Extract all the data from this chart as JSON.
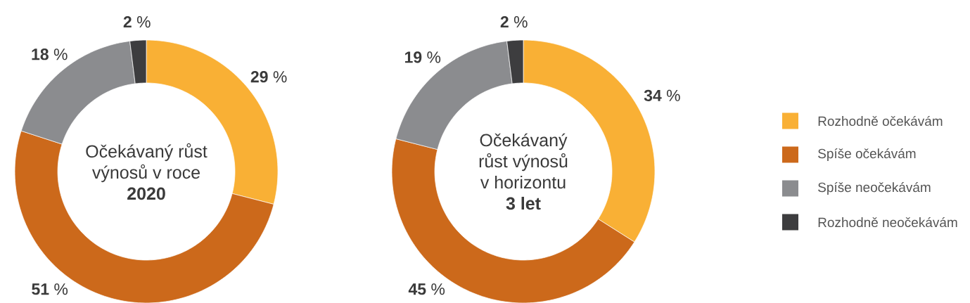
{
  "chart_data": [
    {
      "type": "donut",
      "title": "Očekávaný růst výnosů v roce **2020**",
      "categories": [
        null,
        null,
        null,
        null
      ],
      "values": [
        29,
        51,
        18,
        2
      ],
      "colors": [
        "#f9b035",
        "#cc691b",
        "#8b8c8f",
        "#3d3d3f"
      ],
      "value_labels": [
        "**29** %",
        "**51** %",
        "**18** %",
        "**2** %"
      ]
    },
    {
      "type": "donut",
      "title": "Očekávaný růst výnosů v horizontu **3 let**",
      "categories": [
        "Rozhodně očekávám",
        "Spíše očekávám",
        "Spíše neočekávám",
        "Rozhodně neočekávám"
      ],
      "values": [
        34,
        45,
        19,
        2
      ],
      "colors": [
        "#f9b035",
        "#cc691b",
        "#8b8c8f",
        "#3d3d3f"
      ],
      "value_labels": [
        "**34** %",
        "**45** %",
        "**19** %",
        "**2** %"
      ],
      "legend": "right"
    }
  ]
}
